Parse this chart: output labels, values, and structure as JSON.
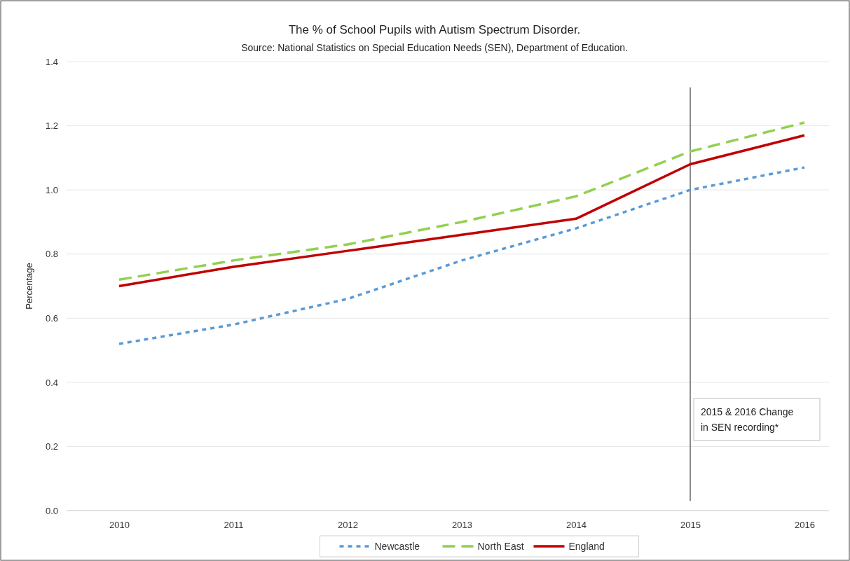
{
  "chart_data": {
    "type": "line",
    "title": "The % of School Pupils with Autism Spectrum Disorder.",
    "subtitle": "Source: National Statistics on Special Education Needs (SEN), Department of Education.",
    "ylabel": "Percentage",
    "categories": [
      "2010",
      "2011",
      "2012",
      "2013",
      "2014",
      "2015",
      "2016"
    ],
    "series": [
      {
        "name": "Newcastle",
        "color": "#5b9bd5",
        "line_style": "dotted",
        "values": [
          0.52,
          0.58,
          0.66,
          0.78,
          0.88,
          1.0,
          1.07
        ]
      },
      {
        "name": "North East",
        "color": "#92d050",
        "line_style": "dashed",
        "values": [
          0.72,
          0.78,
          0.83,
          0.9,
          0.98,
          1.12,
          1.21
        ]
      },
      {
        "name": "England",
        "color": "#c00000",
        "line_style": "solid",
        "values": [
          0.7,
          0.76,
          0.81,
          0.86,
          0.91,
          1.08,
          1.17
        ]
      }
    ],
    "ylim": [
      0,
      1.4
    ],
    "yticks": [
      {
        "value": 0,
        "label": "0.0"
      },
      {
        "value": 0.2,
        "label": "0.2"
      },
      {
        "value": 0.4,
        "label": "0.4"
      },
      {
        "value": 0.6,
        "label": "0.6"
      },
      {
        "value": 0.8,
        "label": "0.8"
      },
      {
        "value": 1,
        "label": "1.0"
      },
      {
        "value": 1.2,
        "label": "1.2"
      },
      {
        "value": 1.4,
        "label": "1.4"
      }
    ],
    "grid": "y",
    "legend": "bottom",
    "marker": "none",
    "ref_lines": [
      {
        "axis": "x",
        "value": "2015",
        "label": "2015 & 2016 Change in SEN recording*",
        "color": "#404040"
      }
    ]
  }
}
